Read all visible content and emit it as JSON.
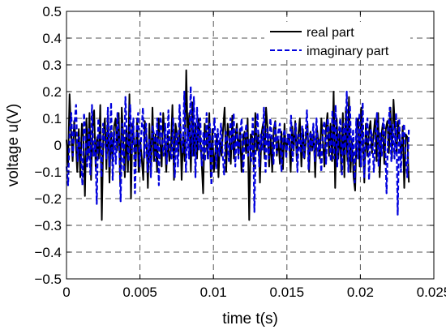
{
  "chart_data": {
    "type": "line",
    "xlabel": "time t(s)",
    "ylabel": "voltage u(V)",
    "xlim": [
      0,
      0.025
    ],
    "ylim": [
      -0.5,
      0.5
    ],
    "x_ticks": [
      0,
      0.005,
      0.01,
      0.015,
      0.02,
      0.025
    ],
    "x_tick_labels": [
      "0",
      "0.005",
      "0.01",
      "0.015",
      "0.02",
      "0.025"
    ],
    "y_ticks": [
      -0.5,
      -0.4,
      -0.3,
      -0.2,
      -0.1,
      0,
      0.1,
      0.2,
      0.3,
      0.4,
      0.5
    ],
    "y_tick_labels": [
      "−0.5",
      "−0.4",
      "−0.3",
      "−0.2",
      "−0.1",
      "0",
      "0.1",
      "0.2",
      "0.3",
      "0.4",
      "0.5"
    ],
    "grid": true,
    "grid_style": "dashed",
    "legend_position": "top-right",
    "x_end": 0.0233,
    "series": [
      {
        "name": "real part",
        "color": "#000000",
        "style": "solid",
        "values": [
          0.02,
          -0.08,
          0.19,
          0.05,
          -0.06,
          0.09,
          0.02,
          -0.1,
          0.06,
          -0.12,
          0.08,
          0.03,
          -0.19,
          0.1,
          -0.05,
          0.12,
          -0.13,
          0.06,
          0.13,
          -0.08,
          0.03,
          -0.05,
          0.15,
          -0.28,
          0.04,
          0.1,
          -0.09,
          0.11,
          -0.14,
          0.05,
          -0.06,
          0.07,
          0.1,
          -0.02,
          0.12,
          -0.14,
          0.14,
          0.02,
          -0.12,
          0.06,
          -0.1,
          0.19,
          -0.2,
          0.08,
          0.03,
          -0.08,
          0.1,
          -0.1,
          0.02,
          -0.05,
          -0.13,
          0.09,
          0.04,
          -0.16,
          0.08,
          -0.1,
          0.14,
          -0.06,
          0.04,
          -0.1,
          0.1,
          0.02,
          -0.08,
          0.12,
          0.03,
          -0.1,
          0.04,
          -0.06,
          -0.02,
          0.15,
          -0.13,
          0.08,
          0.04,
          -0.04,
          0.1,
          -0.13,
          0.03,
          -0.06,
          0.28,
          0.02,
          0.12,
          -0.1,
          0.16,
          -0.04,
          0.08,
          -0.05,
          0.1,
          0.03,
          -0.06,
          -0.18,
          0.08,
          0.05,
          -0.05,
          0.12,
          -0.12,
          0.06,
          -0.1,
          -0.02,
          0.04,
          -0.12,
          0.02,
          -0.04,
          0.06,
          0.14,
          -0.1,
          0.08,
          0.03,
          -0.07,
          0.11,
          -0.05,
          0.03,
          0.08,
          -0.04,
          0.06,
          -0.1,
          0.02,
          0.05,
          -0.03,
          0.1,
          -0.28,
          0.04,
          0.03,
          -0.08,
          0.12,
          -0.02,
          0.05,
          -0.14,
          0.04,
          0.08,
          -0.05,
          0.14,
          0.06,
          -0.08,
          0.03,
          -0.1,
          0.06,
          0.09,
          -0.04,
          0.02,
          -0.07,
          0.05,
          -0.09,
          0.08,
          -0.03,
          0.02,
          0.04,
          -0.1,
          0.07,
          -0.02,
          0.09,
          -0.06,
          0.04,
          0.1,
          -0.08,
          0.06,
          -0.05,
          0.03,
          0.08,
          -0.1,
          0.05,
          -0.02,
          0.04,
          -0.12,
          0.07,
          0.02,
          -0.05,
          0.1,
          0.02,
          -0.08,
          0.06,
          0.12,
          -0.04,
          0.08,
          -0.06,
          0.2,
          -0.16,
          0.1,
          -0.05,
          0.06,
          -0.1,
          0.12,
          -0.12,
          0.14,
          -0.06,
          0.18,
          -0.1,
          0.02,
          -0.12,
          -0.17,
          0.06,
          0.1,
          -0.08,
          0.14,
          0.02,
          -0.14,
          0.08,
          -0.04,
          0.05,
          0.09,
          -0.03,
          0.04,
          0.1,
          -0.06,
          0.12,
          -0.12,
          0.03,
          0.08,
          -0.07,
          0.06,
          0.09,
          -0.03,
          0.14,
          -0.05,
          0.17,
          0.06,
          -0.03,
          0.09,
          0.02,
          -0.04,
          0.07,
          -0.16,
          0.04,
          0.03,
          -0.14
        ]
      },
      {
        "name": "imaginary part",
        "color": "#0000dd",
        "style": "dashed",
        "values": [
          -0.08,
          -0.15,
          0.05,
          0.12,
          -0.04,
          0.08,
          0.15,
          -0.06,
          0.03,
          -0.02,
          -0.15,
          0.12,
          0.02,
          -0.08,
          0.06,
          -0.11,
          0.15,
          -0.04,
          0.02,
          -0.22,
          0.1,
          0.05,
          -0.12,
          0.08,
          0.02,
          -0.05,
          0.14,
          -0.08,
          0.16,
          -0.13,
          0.05,
          -0.07,
          0.12,
          0.02,
          -0.21,
          0.08,
          -0.1,
          0.18,
          0.03,
          -0.06,
          0.15,
          -0.03,
          0.1,
          -0.18,
          0.05,
          0.12,
          -0.08,
          0.04,
          0.14,
          -0.05,
          0.08,
          -0.1,
          0.02,
          -0.12,
          0.07,
          0.04,
          -0.06,
          0.1,
          -0.15,
          0.12,
          0.03,
          -0.04,
          0.08,
          -0.07,
          0.13,
          -0.02,
          -0.05,
          0.1,
          -0.12,
          0.05,
          -0.08,
          0.15,
          0.02,
          -0.03,
          0.2,
          -0.1,
          0.06,
          -0.05,
          0.22,
          -0.04,
          0.18,
          -0.12,
          0.14,
          -0.02,
          0.1,
          -0.08,
          0.05,
          -0.06,
          0.12,
          -0.05,
          0.08,
          -0.15,
          0.03,
          0.1,
          -0.09,
          0.06,
          -0.04,
          0.08,
          -0.03,
          -0.11,
          0.05,
          0.02,
          -0.06,
          0.1,
          -0.02,
          0.12,
          -0.08,
          0.06,
          -0.05,
          0.04,
          0.1,
          -0.1,
          0.03,
          0.08,
          -0.04,
          0.02,
          -0.06,
          0.1,
          -0.25,
          0.05,
          0.12,
          -0.08,
          0.04,
          -0.02,
          0.14,
          -0.1,
          0.06,
          -0.05,
          0.1,
          0.02,
          -0.07,
          0.09,
          -0.03,
          0.05,
          0.08,
          -0.1,
          0.03,
          0.06,
          -0.05,
          0.04,
          -0.02,
          0.11,
          -0.06,
          0.02,
          0.08,
          -0.1,
          0.04,
          -0.03,
          0.07,
          -0.05,
          0.03,
          0.13,
          -0.09,
          0.05,
          -0.02,
          0.08,
          -0.06,
          0.1,
          -0.04,
          0.02,
          -0.1,
          0.06,
          0.09,
          -0.07,
          0.1,
          0.04,
          -0.06,
          0.13,
          -0.05,
          0.15,
          -0.08,
          0.05,
          0.1,
          -0.11,
          0.08,
          -0.04,
          0.2,
          -0.1,
          0.15,
          -0.06,
          0.06,
          -0.14,
          0.1,
          -0.05,
          0.12,
          -0.08,
          0.16,
          -0.12,
          0.05,
          0.1,
          -0.13,
          0.06,
          0.03,
          -0.1,
          0.04,
          0.12,
          -0.08,
          0.05,
          -0.04,
          0.1,
          0.03,
          -0.18,
          0.06,
          0.14,
          -0.06,
          0.08,
          -0.05,
          0.12,
          -0.26,
          0.1,
          -0.1,
          0.04,
          0.08,
          -0.05,
          -0.12,
          0.06
        ]
      }
    ]
  }
}
